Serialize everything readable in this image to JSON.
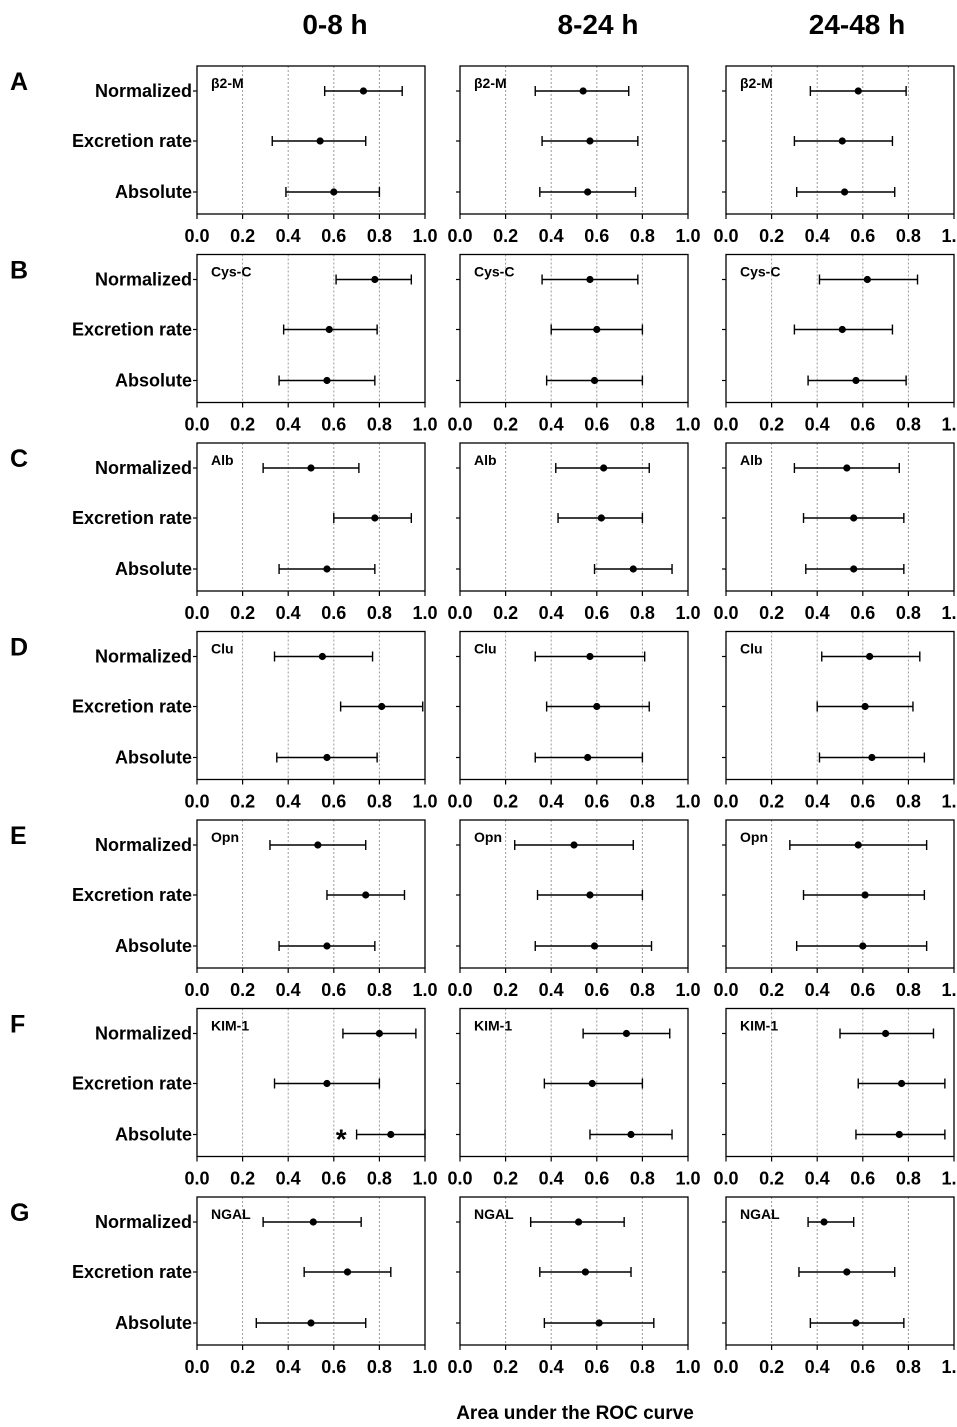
{
  "chart_data": {
    "type": "forest",
    "title": "",
    "xlabel": "Area under the ROC curve",
    "xlim": [
      0.0,
      1.0
    ],
    "xticks": [
      "0.0",
      "0.2",
      "0.4",
      "0.6",
      "0.8",
      "1.0"
    ],
    "grid": "vertical dotted lines at 0.2, 0.4, 0.6, 0.8",
    "time_windows": [
      "0-8 h",
      "8-24 h",
      "24-48 h"
    ],
    "categories": [
      "Normalized",
      "Excretion rate",
      "Absolute"
    ],
    "panels": [
      {
        "letter": "A",
        "marker": "β2-M",
        "values": [
          [
            [
              0.73,
              0.56,
              0.9
            ],
            [
              0.54,
              0.33,
              0.74
            ],
            [
              0.6,
              0.39,
              0.8
            ]
          ],
          [
            [
              0.54,
              0.33,
              0.74
            ],
            [
              0.57,
              0.36,
              0.78
            ],
            [
              0.56,
              0.35,
              0.77
            ]
          ],
          [
            [
              0.58,
              0.37,
              0.79
            ],
            [
              0.51,
              0.3,
              0.73
            ],
            [
              0.52,
              0.31,
              0.74
            ]
          ]
        ]
      },
      {
        "letter": "B",
        "marker": "Cys-C",
        "values": [
          [
            [
              0.78,
              0.61,
              0.94
            ],
            [
              0.58,
              0.38,
              0.79
            ],
            [
              0.57,
              0.36,
              0.78
            ]
          ],
          [
            [
              0.57,
              0.36,
              0.78
            ],
            [
              0.6,
              0.4,
              0.8
            ],
            [
              0.59,
              0.38,
              0.8
            ]
          ],
          [
            [
              0.62,
              0.41,
              0.84
            ],
            [
              0.51,
              0.3,
              0.73
            ],
            [
              0.57,
              0.36,
              0.79
            ]
          ]
        ]
      },
      {
        "letter": "C",
        "marker": "Alb",
        "values": [
          [
            [
              0.5,
              0.29,
              0.71
            ],
            [
              0.78,
              0.6,
              0.94
            ],
            [
              0.57,
              0.36,
              0.78
            ]
          ],
          [
            [
              0.63,
              0.42,
              0.83
            ],
            [
              0.62,
              0.43,
              0.8
            ],
            [
              0.76,
              0.59,
              0.93
            ]
          ],
          [
            [
              0.53,
              0.3,
              0.76
            ],
            [
              0.56,
              0.34,
              0.78
            ],
            [
              0.56,
              0.35,
              0.78
            ]
          ]
        ]
      },
      {
        "letter": "D",
        "marker": "Clu",
        "values": [
          [
            [
              0.55,
              0.34,
              0.77
            ],
            [
              0.81,
              0.63,
              0.99
            ],
            [
              0.57,
              0.35,
              0.79
            ]
          ],
          [
            [
              0.57,
              0.33,
              0.81
            ],
            [
              0.6,
              0.38,
              0.83
            ],
            [
              0.56,
              0.33,
              0.8
            ]
          ],
          [
            [
              0.63,
              0.42,
              0.85
            ],
            [
              0.61,
              0.4,
              0.82
            ],
            [
              0.64,
              0.41,
              0.87
            ]
          ]
        ]
      },
      {
        "letter": "E",
        "marker": "Opn",
        "values": [
          [
            [
              0.53,
              0.32,
              0.74
            ],
            [
              0.74,
              0.57,
              0.91
            ],
            [
              0.57,
              0.36,
              0.78
            ]
          ],
          [
            [
              0.5,
              0.24,
              0.76
            ],
            [
              0.57,
              0.34,
              0.8
            ],
            [
              0.59,
              0.33,
              0.84
            ]
          ],
          [
            [
              0.58,
              0.28,
              0.88
            ],
            [
              0.61,
              0.34,
              0.87
            ],
            [
              0.6,
              0.31,
              0.88
            ]
          ]
        ]
      },
      {
        "letter": "F",
        "marker": "KIM-1",
        "values": [
          [
            [
              0.8,
              0.64,
              0.96
            ],
            [
              0.57,
              0.34,
              0.8
            ],
            [
              0.85,
              0.7,
              1.0
            ]
          ],
          [
            [
              0.73,
              0.54,
              0.92
            ],
            [
              0.58,
              0.37,
              0.8
            ],
            [
              0.75,
              0.57,
              0.93
            ]
          ],
          [
            [
              0.7,
              0.5,
              0.91
            ],
            [
              0.77,
              0.58,
              0.96
            ],
            [
              0.76,
              0.57,
              0.96
            ]
          ]
        ]
      },
      {
        "letter": "G",
        "marker": "NGAL",
        "values": [
          [
            [
              0.51,
              0.29,
              0.72
            ],
            [
              0.66,
              0.47,
              0.85
            ],
            [
              0.5,
              0.26,
              0.74
            ]
          ],
          [
            [
              0.52,
              0.31,
              0.72
            ],
            [
              0.55,
              0.35,
              0.75
            ],
            [
              0.61,
              0.37,
              0.85
            ]
          ],
          [
            [
              0.43,
              0.36,
              0.56
            ],
            [
              0.53,
              0.32,
              0.74
            ],
            [
              0.57,
              0.37,
              0.78
            ]
          ]
        ]
      }
    ],
    "annotations": [
      {
        "panel": "F",
        "window": "0-8 h",
        "category": "Absolute",
        "text": "*"
      }
    ]
  }
}
